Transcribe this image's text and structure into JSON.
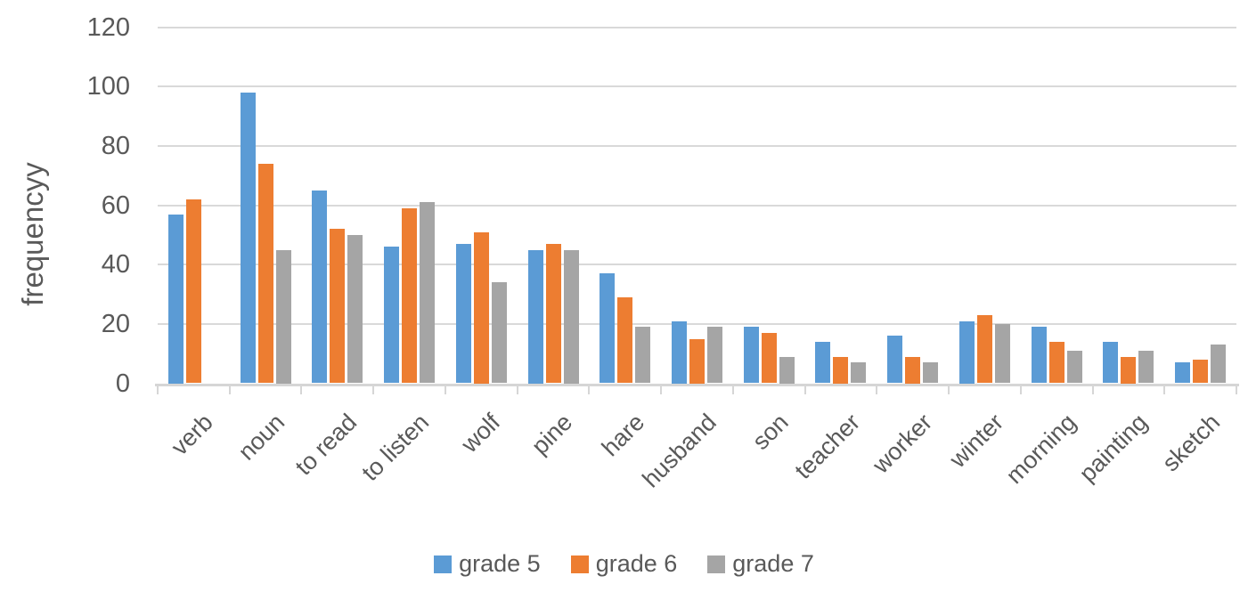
{
  "styles": {
    "background": "#FFFFFF",
    "text_color": "#595959",
    "gridline_color": "#D9D9D9",
    "axis_color": "#D6D6D6"
  },
  "chart_data": {
    "type": "bar",
    "ylabel": "frequencyy",
    "ylim": [
      0,
      120
    ],
    "ytick_step": 20,
    "grid": true,
    "legend_position": "bottom",
    "categories": [
      "verb",
      "noun",
      "to read",
      "to listen",
      "wolf",
      "pine",
      "hare",
      "husband",
      "son",
      "teacher",
      "worker",
      "winter",
      "morning",
      "painting",
      "sketch"
    ],
    "series": [
      {
        "name": "grade 5",
        "color": "#5B9BD5",
        "values": [
          57,
          98,
          65,
          46,
          47,
          45,
          37,
          21,
          19,
          14,
          16,
          21,
          19,
          14,
          7
        ]
      },
      {
        "name": "grade 6",
        "color": "#ED7D31",
        "values": [
          62,
          74,
          52,
          59,
          51,
          47,
          29,
          15,
          17,
          9,
          9,
          23,
          14,
          9,
          8
        ]
      },
      {
        "name": "grade 7",
        "color": "#A5A5A5",
        "values": [
          0,
          45,
          50,
          61,
          34,
          45,
          19,
          19,
          9,
          7,
          7,
          20,
          11,
          11,
          13
        ]
      }
    ]
  }
}
